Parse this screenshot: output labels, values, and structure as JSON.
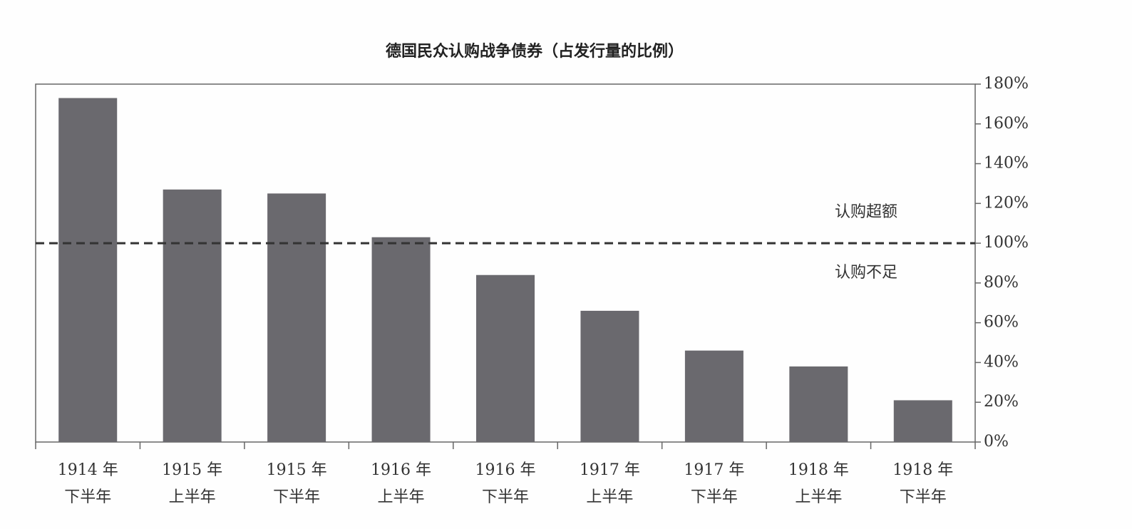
{
  "chart_data": {
    "type": "bar",
    "title": "德国民众认购战争债券（占发行量的比例）",
    "categories": [
      [
        "1914 年",
        "下半年"
      ],
      [
        "1915 年",
        "上半年"
      ],
      [
        "1915 年",
        "下半年"
      ],
      [
        "1916 年",
        "上半年"
      ],
      [
        "1916 年",
        "下半年"
      ],
      [
        "1917 年",
        "上半年"
      ],
      [
        "1917 年",
        "下半年"
      ],
      [
        "1918 年",
        "上半年"
      ],
      [
        "1918 年",
        "下半年"
      ]
    ],
    "values": [
      173,
      127,
      125,
      103,
      84,
      66,
      46,
      38,
      21
    ],
    "color": "#6a696e",
    "ylim": [
      0,
      180
    ],
    "yticks": [
      {
        "value": 0,
        "label": "0%"
      },
      {
        "value": 20,
        "label": "20%"
      },
      {
        "value": 40,
        "label": "40%"
      },
      {
        "value": 60,
        "label": "60%"
      },
      {
        "value": 80,
        "label": "80%"
      },
      {
        "value": 100,
        "label": "100%"
      },
      {
        "value": 120,
        "label": "120%"
      },
      {
        "value": 140,
        "label": "140%"
      },
      {
        "value": 160,
        "label": "160%"
      },
      {
        "value": 180,
        "label": "180%"
      }
    ],
    "y_axis_side": "right",
    "reference_line": {
      "value": 100,
      "label_above": "认购超额",
      "label_below": "认购不足"
    }
  }
}
